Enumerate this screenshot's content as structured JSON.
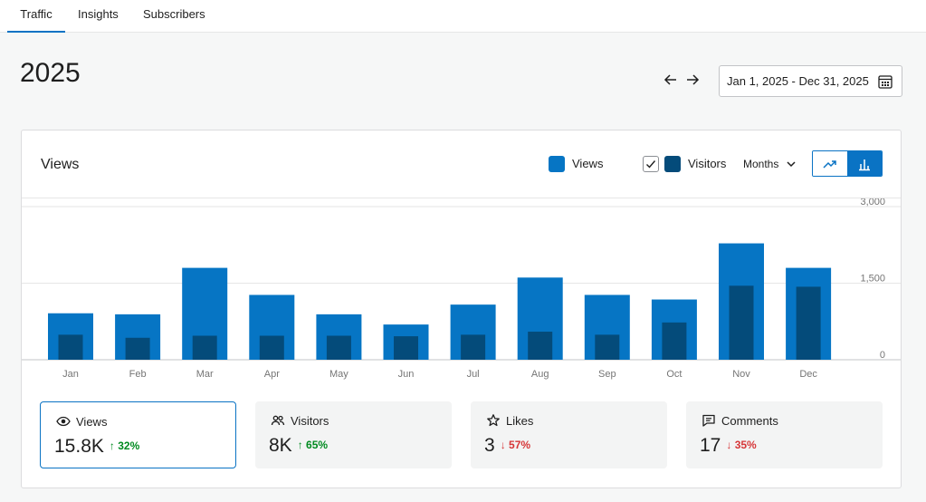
{
  "nav": {
    "tabs": [
      {
        "label": "Traffic"
      },
      {
        "label": "Insights"
      },
      {
        "label": "Subscribers"
      }
    ]
  },
  "header": {
    "year": "2025",
    "date_range": "Jan 1, 2025 - Dec 31, 2025"
  },
  "card": {
    "title": "Views",
    "legend_views": "Views",
    "legend_visitors": "Visitors",
    "visitors_checked": true,
    "period": "Months"
  },
  "colors": {
    "accent": "#0a73c4",
    "views": "#0675c4",
    "visitors": "#044b7a",
    "up": "#008a20",
    "down": "#d63638"
  },
  "chart_data": {
    "type": "bar",
    "categories": [
      "Jan",
      "Feb",
      "Mar",
      "Apr",
      "May",
      "Jun",
      "Jul",
      "Aug",
      "Sep",
      "Oct",
      "Nov",
      "Dec"
    ],
    "series": [
      {
        "name": "Views",
        "values": [
          910,
          890,
          1800,
          1270,
          890,
          690,
          1080,
          1610,
          1270,
          1180,
          2280,
          1800
        ]
      },
      {
        "name": "Visitors",
        "values": [
          490,
          430,
          470,
          470,
          470,
          460,
          490,
          550,
          490,
          730,
          1450,
          1430
        ]
      }
    ],
    "ylim": [
      0,
      3000
    ],
    "yticks": [
      "3,000",
      "1,500",
      "0"
    ],
    "grid": true
  },
  "stats": [
    {
      "label": "Views",
      "icon": "eye-icon",
      "value": "15.8K",
      "delta": "↑ 32%",
      "direction": "up"
    },
    {
      "label": "Visitors",
      "icon": "people-icon",
      "value": "8K",
      "delta": "↑ 65%",
      "direction": "up"
    },
    {
      "label": "Likes",
      "icon": "star-icon",
      "value": "3",
      "delta": "↓ 57%",
      "direction": "down"
    },
    {
      "label": "Comments",
      "icon": "comment-icon",
      "value": "17",
      "delta": "↓ 35%",
      "direction": "down"
    }
  ]
}
